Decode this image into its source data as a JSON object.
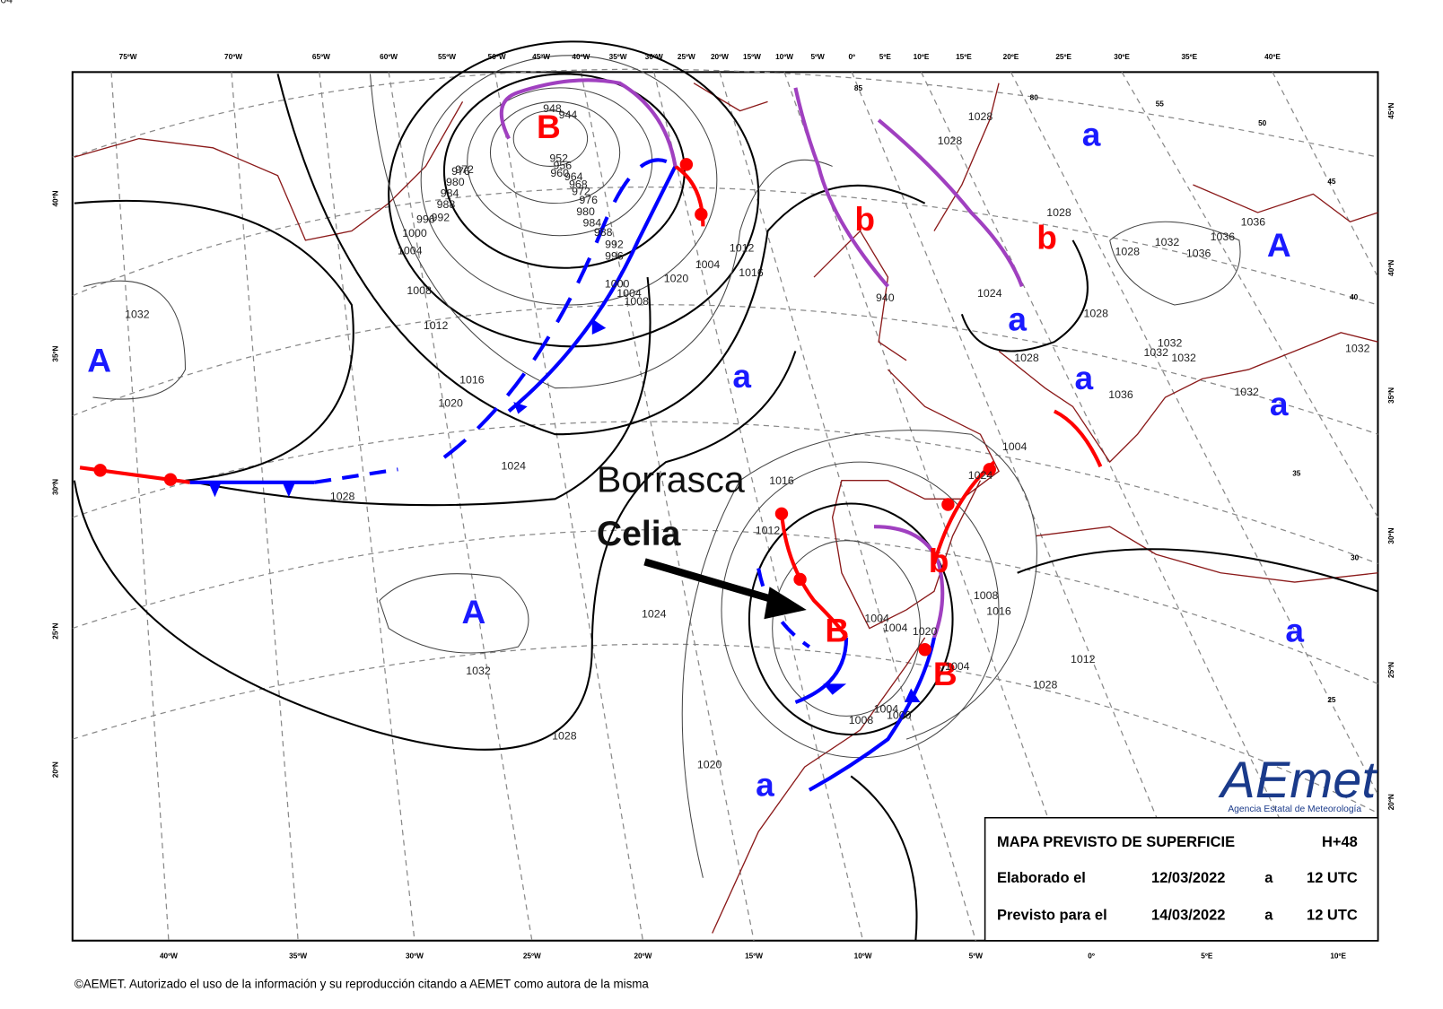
{
  "map": {
    "top_lon_labels": [
      "75ºW",
      "70ºW",
      "65ºW",
      "60ºW",
      "55ºW",
      "50ºW",
      "45ºW",
      "40ºW",
      "35ºW",
      "30ºW",
      "25ºW",
      "20ºW",
      "15ºW",
      "10ºW",
      "5ºW",
      "0º",
      "5ºE",
      "10ºE",
      "15ºE",
      "20ºE",
      "25ºE",
      "30ºE",
      "35ºE",
      "40ºE"
    ],
    "bottom_lon_labels": [
      "40ºW",
      "35ºW",
      "30ºW",
      "25ºW",
      "20ºW",
      "15ºW",
      "10ºW",
      "5ºW",
      "0º",
      "5ºE",
      "10ºE"
    ],
    "left_lat_labels": [
      "40ºN",
      "35ºN",
      "30ºN",
      "25ºN",
      "20ºN"
    ],
    "right_lat_labels": [
      "45ºN",
      "40ºN",
      "35ºN",
      "30ºN",
      "25ºN",
      "20ºN"
    ],
    "grid_labels": [
      "85",
      "80",
      "55",
      "50",
      "45",
      "40",
      "35",
      "30",
      "25"
    ],
    "low_centers": [
      "B",
      "b",
      "b",
      "b",
      "B",
      "B"
    ],
    "high_centers": [
      "A",
      "A",
      "A"
    ],
    "relative_highs": [
      "a",
      "a",
      "a",
      "a",
      "a",
      "a",
      "a"
    ],
    "isobar_labels": [
      "1032",
      "1012",
      "1008",
      "1004",
      "1000",
      "996",
      "992",
      "988",
      "984",
      "980",
      "976",
      "972",
      "1016",
      "1020",
      "1024",
      "1028",
      "1032",
      "1028",
      "1024",
      "1020",
      "1016",
      "1012",
      "1008",
      "1004",
      "1004",
      "1004",
      "1004",
      "1012",
      "1016",
      "1020",
      "1008",
      "1004",
      "1000",
      "996",
      "992",
      "988",
      "984",
      "980",
      "976",
      "972",
      "968",
      "964",
      "960",
      "956",
      "952",
      "948",
      "944",
      "940",
      "1024",
      "1028",
      "1028",
      "1028",
      "1028",
      "1028",
      "1028",
      "1032",
      "1036",
      "1036",
      "1036",
      "1036",
      "1032",
      "1032",
      "1032",
      "1032",
      "1032",
      "1028",
      "1012",
      "1016",
      "1008",
      "1004",
      "1004",
      "1024",
      "1020",
      "1000",
      "1004"
    ],
    "annotation": {
      "line1": "Borrasca",
      "line2": "Celia"
    },
    "info_box": {
      "title": "MAPA PREVISTO DE SUPERFICIE",
      "lead": "H+48",
      "rows": [
        [
          "Elaborado el",
          "12/03/2022",
          "a",
          "12 UTC"
        ],
        [
          "Previsto para el",
          "14/03/2022",
          "a",
          "12 UTC"
        ]
      ]
    },
    "logo": {
      "name": "AEmet",
      "subtitle": "Agencia Estatal de Meteorología"
    },
    "copyright": "©AEMET. Autorizado el uso de la información y su reproducción citando a AEMET como autora de la misma"
  }
}
